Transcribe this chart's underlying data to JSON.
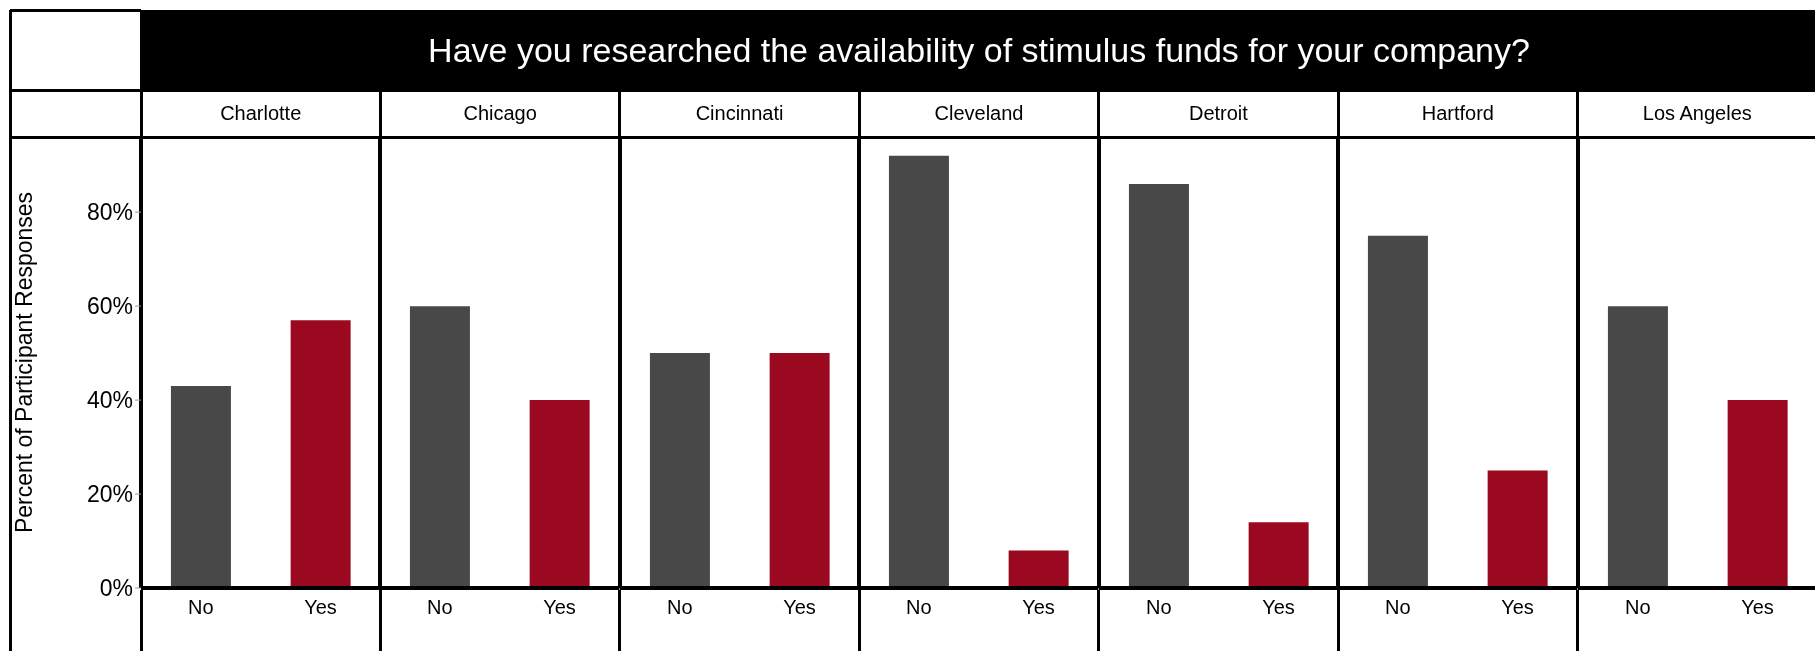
{
  "chart_data": [
    {
      "type": "bar",
      "title": "Charlotte",
      "annotations": [
        "Have you researched the availability of stimulus funds for your company?"
      ],
      "ylabel": "Percent of Participant Responses",
      "categories": [
        "No",
        "Yes"
      ],
      "values": [
        43,
        57
      ],
      "colors": [
        "#484848",
        "#9b0921"
      ],
      "ylim": [
        0,
        96
      ],
      "yticks": [
        {
          "value": 0,
          "label": "0%"
        },
        {
          "value": 20,
          "label": "20%"
        },
        {
          "value": 40,
          "label": "40%"
        },
        {
          "value": 60,
          "label": "60%"
        },
        {
          "value": 80,
          "label": "80%"
        }
      ]
    },
    {
      "type": "bar",
      "title": "Chicago",
      "categories": [
        "No",
        "Yes"
      ],
      "values": [
        60,
        40
      ],
      "colors": [
        "#484848",
        "#9b0921"
      ],
      "ylim": [
        0,
        96
      ],
      "tick_labels": "x"
    },
    {
      "type": "bar",
      "title": "Cincinnati",
      "categories": [
        "No",
        "Yes"
      ],
      "values": [
        50,
        50
      ],
      "colors": [
        "#484848",
        "#9b0921"
      ],
      "ylim": [
        0,
        96
      ],
      "tick_labels": "x"
    },
    {
      "type": "bar",
      "title": "Cleveland",
      "categories": [
        "No",
        "Yes"
      ],
      "values": [
        92,
        8
      ],
      "colors": [
        "#484848",
        "#9b0921"
      ],
      "ylim": [
        0,
        96
      ],
      "tick_labels": "x"
    },
    {
      "type": "bar",
      "title": "Detroit",
      "categories": [
        "No",
        "Yes"
      ],
      "values": [
        86,
        14
      ],
      "colors": [
        "#484848",
        "#9b0921"
      ],
      "ylim": [
        0,
        96
      ],
      "tick_labels": "x"
    },
    {
      "type": "bar",
      "title": "Hartford",
      "categories": [
        "No",
        "Yes"
      ],
      "values": [
        75,
        25
      ],
      "colors": [
        "#484848",
        "#9b0921"
      ],
      "ylim": [
        0,
        96
      ],
      "tick_labels": "x"
    },
    {
      "type": "bar",
      "title": "Los Angeles",
      "categories": [
        "No",
        "Yes"
      ],
      "values": [
        60,
        40
      ],
      "colors": [
        "#484848",
        "#9b0921"
      ],
      "ylim": [
        0,
        96
      ],
      "tick_labels": "x"
    }
  ]
}
